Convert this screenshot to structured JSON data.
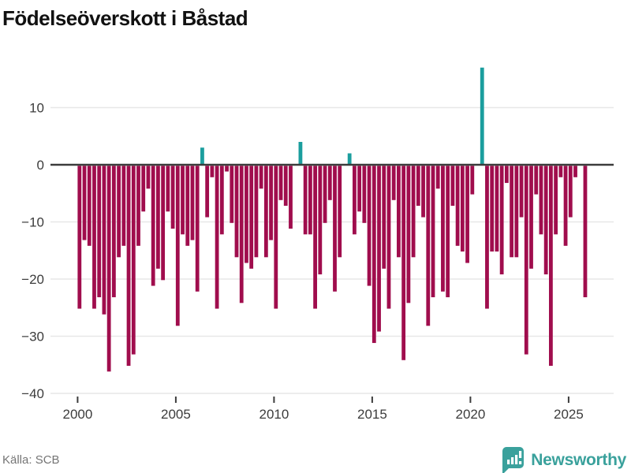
{
  "title": "Födelseöverskott i Båstad",
  "source_label": "Källa: SCB",
  "brand": {
    "name": "Newsworthy",
    "color": "#3aa19c"
  },
  "colors": {
    "negative_bar": "#a00d4d",
    "positive_bar": "#1b9e9e",
    "axis_line": "#3c3c3c",
    "gridline": "#e7e7e7",
    "tick_text": "#3c3c3c"
  },
  "chart_data": {
    "type": "bar",
    "title": "Födelseöverskott i Båstad",
    "xlabel": "",
    "ylabel": "",
    "x_unit": "quarter",
    "start_year": 2000,
    "end": "2025Q4",
    "grid": true,
    "legend": "none",
    "ylim": [
      -40,
      18
    ],
    "y_ticks": [
      10,
      0,
      -10,
      -20,
      -30,
      -40
    ],
    "y_tick_labels": [
      "10",
      "0",
      "−10",
      "−20",
      "−30",
      "−40"
    ],
    "x_tick_years": [
      2000,
      2005,
      2010,
      2015,
      2020,
      2025
    ],
    "x_tick_labels": [
      "2000",
      "2005",
      "2010",
      "2015",
      "2020",
      "2025"
    ],
    "series": [
      {
        "name": "Födelseöverskott",
        "values": [
          -25,
          -13,
          -14,
          -25,
          -23,
          -26,
          -36,
          -23,
          -16,
          -14,
          -35,
          -33,
          -14,
          -8,
          -4,
          -21,
          -18,
          -20,
          -8,
          -11,
          -28,
          -12,
          -14,
          -13,
          -22,
          3,
          -9,
          -2,
          -25,
          -12,
          -1,
          -10,
          -16,
          -24,
          -17,
          -18,
          -16,
          -4,
          -16,
          -13,
          -25,
          -6,
          -7,
          -11,
          0,
          4,
          -12,
          -12,
          -25,
          -19,
          -10,
          -6,
          -22,
          -16,
          0,
          2,
          -12,
          -8,
          -10,
          -21,
          -31,
          -29,
          -18,
          -25,
          -6,
          -16,
          -34,
          -24,
          -16,
          -7,
          -9,
          -28,
          -23,
          -4,
          -22,
          -23,
          -7,
          -14,
          -15,
          -17,
          -5,
          0,
          17,
          -25,
          -15,
          -15,
          -19,
          -3,
          -16,
          -16,
          -9,
          -33,
          -18,
          -5,
          -12,
          -19,
          -35,
          -12,
          -2,
          -14,
          -9,
          -2,
          0,
          -23
        ]
      }
    ]
  }
}
